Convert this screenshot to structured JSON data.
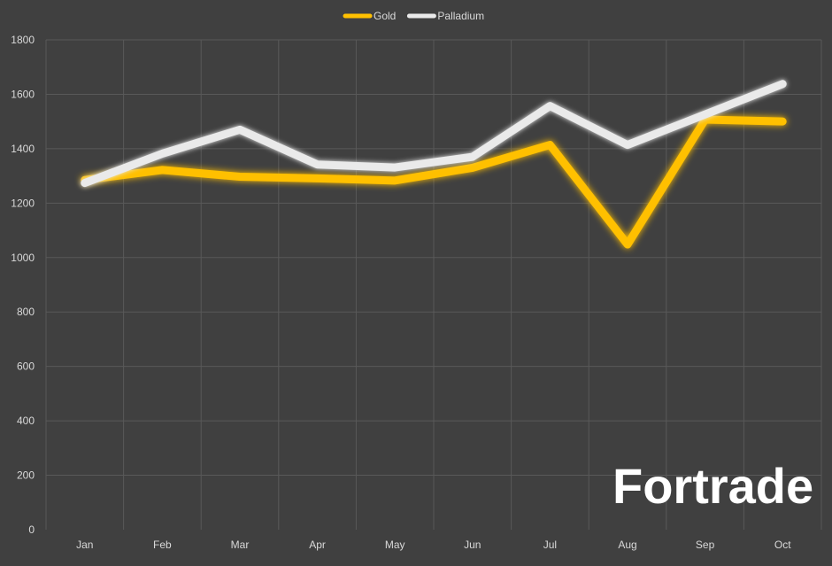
{
  "chart_data": {
    "type": "line",
    "categories": [
      "Jan",
      "Feb",
      "Mar",
      "Apr",
      "May",
      "Jun",
      "Jul",
      "Aug",
      "Sep",
      "Oct"
    ],
    "series": [
      {
        "name": "Gold",
        "color": "#ffc000",
        "values": [
          1285,
          1322,
          1297,
          1291,
          1283,
          1330,
          1414,
          1048,
          1507,
          1500
        ]
      },
      {
        "name": "Palladium",
        "color": "#eaeaea",
        "values": [
          1274,
          1382,
          1470,
          1342,
          1331,
          1370,
          1557,
          1414,
          1526,
          1638
        ]
      }
    ],
    "title": "",
    "xlabel": "",
    "ylabel": "",
    "ylim": [
      0,
      1800
    ],
    "yticks": [
      0,
      200,
      400,
      600,
      800,
      1000,
      1200,
      1400,
      1600,
      1800
    ],
    "grid": true,
    "legend_position": "top-center"
  },
  "logo": {
    "text": "Fortrade"
  }
}
